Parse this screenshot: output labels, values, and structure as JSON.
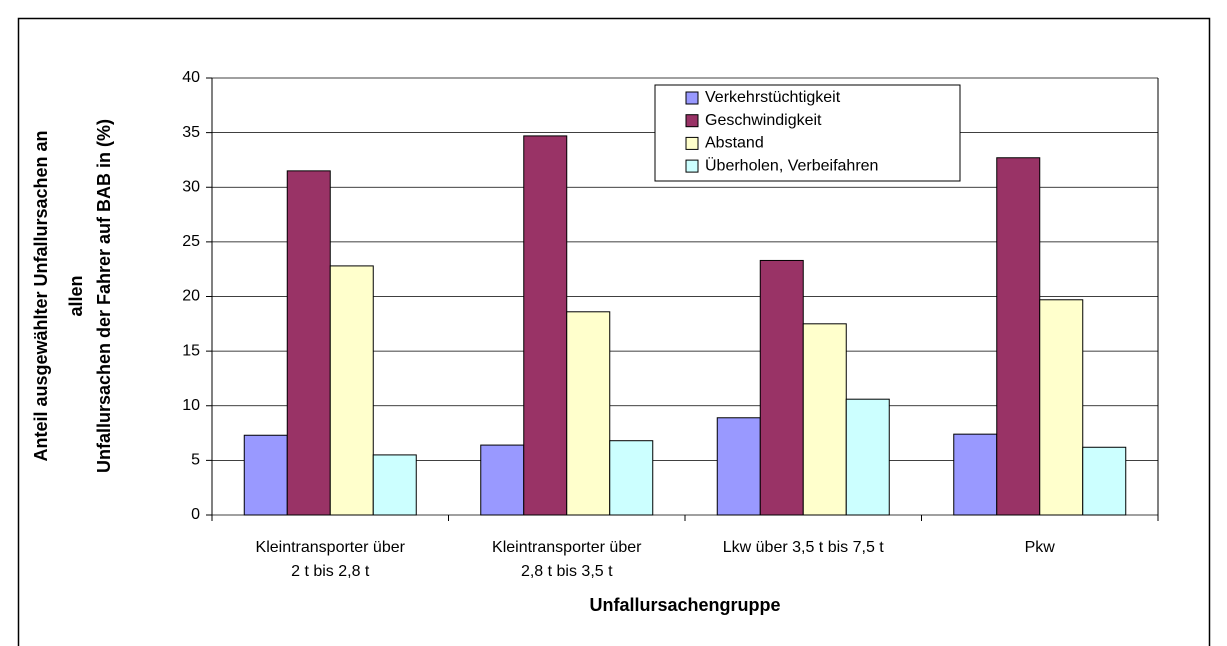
{
  "chart_data": {
    "type": "bar",
    "xlabel": "Unfallursachengruppe",
    "ylabel": [
      "Anteil ausgewählter Unfallursachen an",
      "allen",
      "Unfallursachen der Fahrer auf BAB in (%)"
    ],
    "categories": [
      [
        "Kleintransporter über",
        "2 t bis 2,8 t"
      ],
      [
        "Kleintransporter über",
        "2,8 t bis 3,5 t"
      ],
      [
        "Lkw über 3,5 t bis 7,5 t"
      ],
      [
        "Pkw"
      ]
    ],
    "series": [
      {
        "name": "Verkehrstüchtigkeit",
        "color": "#9999ff",
        "values": [
          7.3,
          6.4,
          8.9,
          7.4
        ]
      },
      {
        "name": "Geschwindigkeit",
        "color": "#993366",
        "values": [
          31.5,
          34.7,
          23.3,
          32.7
        ]
      },
      {
        "name": "Abstand",
        "color": "#ffffcc",
        "values": [
          22.8,
          18.6,
          17.5,
          19.7
        ]
      },
      {
        "name": "Überholen, Verbeifahren",
        "color": "#ccffff",
        "values": [
          5.5,
          6.8,
          10.6,
          6.2
        ]
      }
    ],
    "ylim": [
      0,
      40
    ],
    "yticks": [
      0,
      5,
      10,
      15,
      20,
      25,
      30,
      35,
      40
    ],
    "grid": true,
    "legend": "top-right"
  }
}
